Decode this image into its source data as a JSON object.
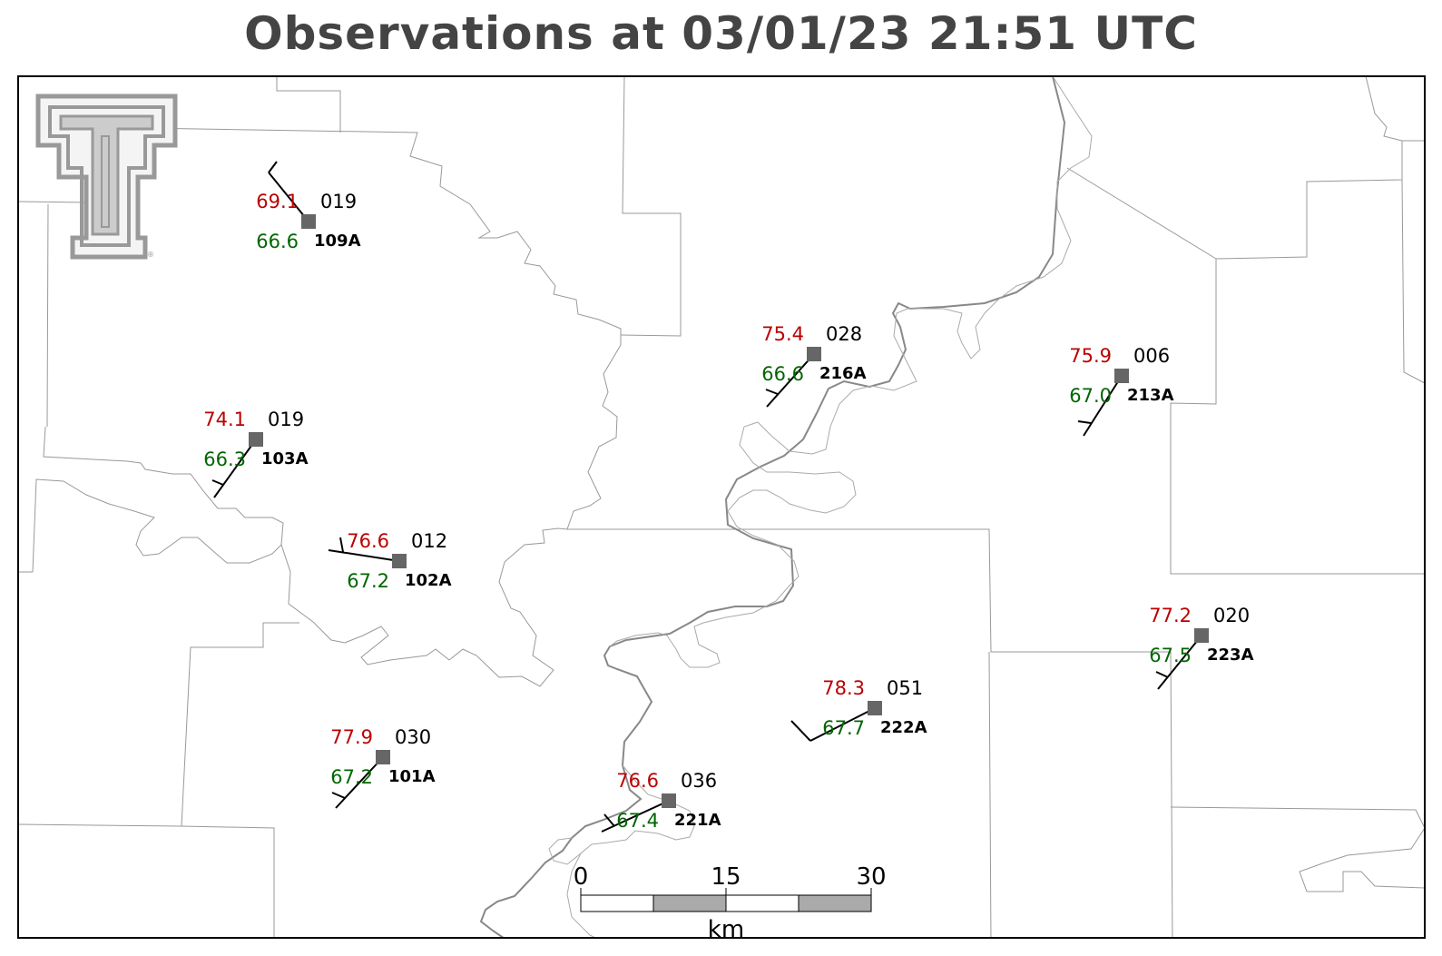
{
  "title": "Observations at 03/01/23 21:51 UTC",
  "logo": {
    "icon": "texas-tech-double-t-logo",
    "color": "#999999"
  },
  "colors": {
    "temperature": "#bb0000",
    "dewpoint": "#006600",
    "station_marker": "#666666",
    "boundary": "#999999",
    "river": "#888888"
  },
  "stations": [
    {
      "id": "109A",
      "temp": "69.1",
      "dew": "66.6",
      "pres": "019"
    },
    {
      "id": "103A",
      "temp": "74.1",
      "dew": "66.3",
      "pres": "019"
    },
    {
      "id": "102A",
      "temp": "76.6",
      "dew": "67.2",
      "pres": "012"
    },
    {
      "id": "101A",
      "temp": "77.9",
      "dew": "67.2",
      "pres": "030"
    },
    {
      "id": "221A",
      "temp": "76.6",
      "dew": "67.4",
      "pres": "036"
    },
    {
      "id": "222A",
      "temp": "78.3",
      "dew": "67.7",
      "pres": "051"
    },
    {
      "id": "216A",
      "temp": "75.4",
      "dew": "66.6",
      "pres": "028"
    },
    {
      "id": "213A",
      "temp": "75.9",
      "dew": "67.0",
      "pres": "006"
    },
    {
      "id": "223A",
      "temp": "77.2",
      "dew": "67.5",
      "pres": "020"
    }
  ],
  "scale_bar": {
    "ticks": [
      "0",
      "15",
      "30"
    ],
    "unit": "km"
  }
}
